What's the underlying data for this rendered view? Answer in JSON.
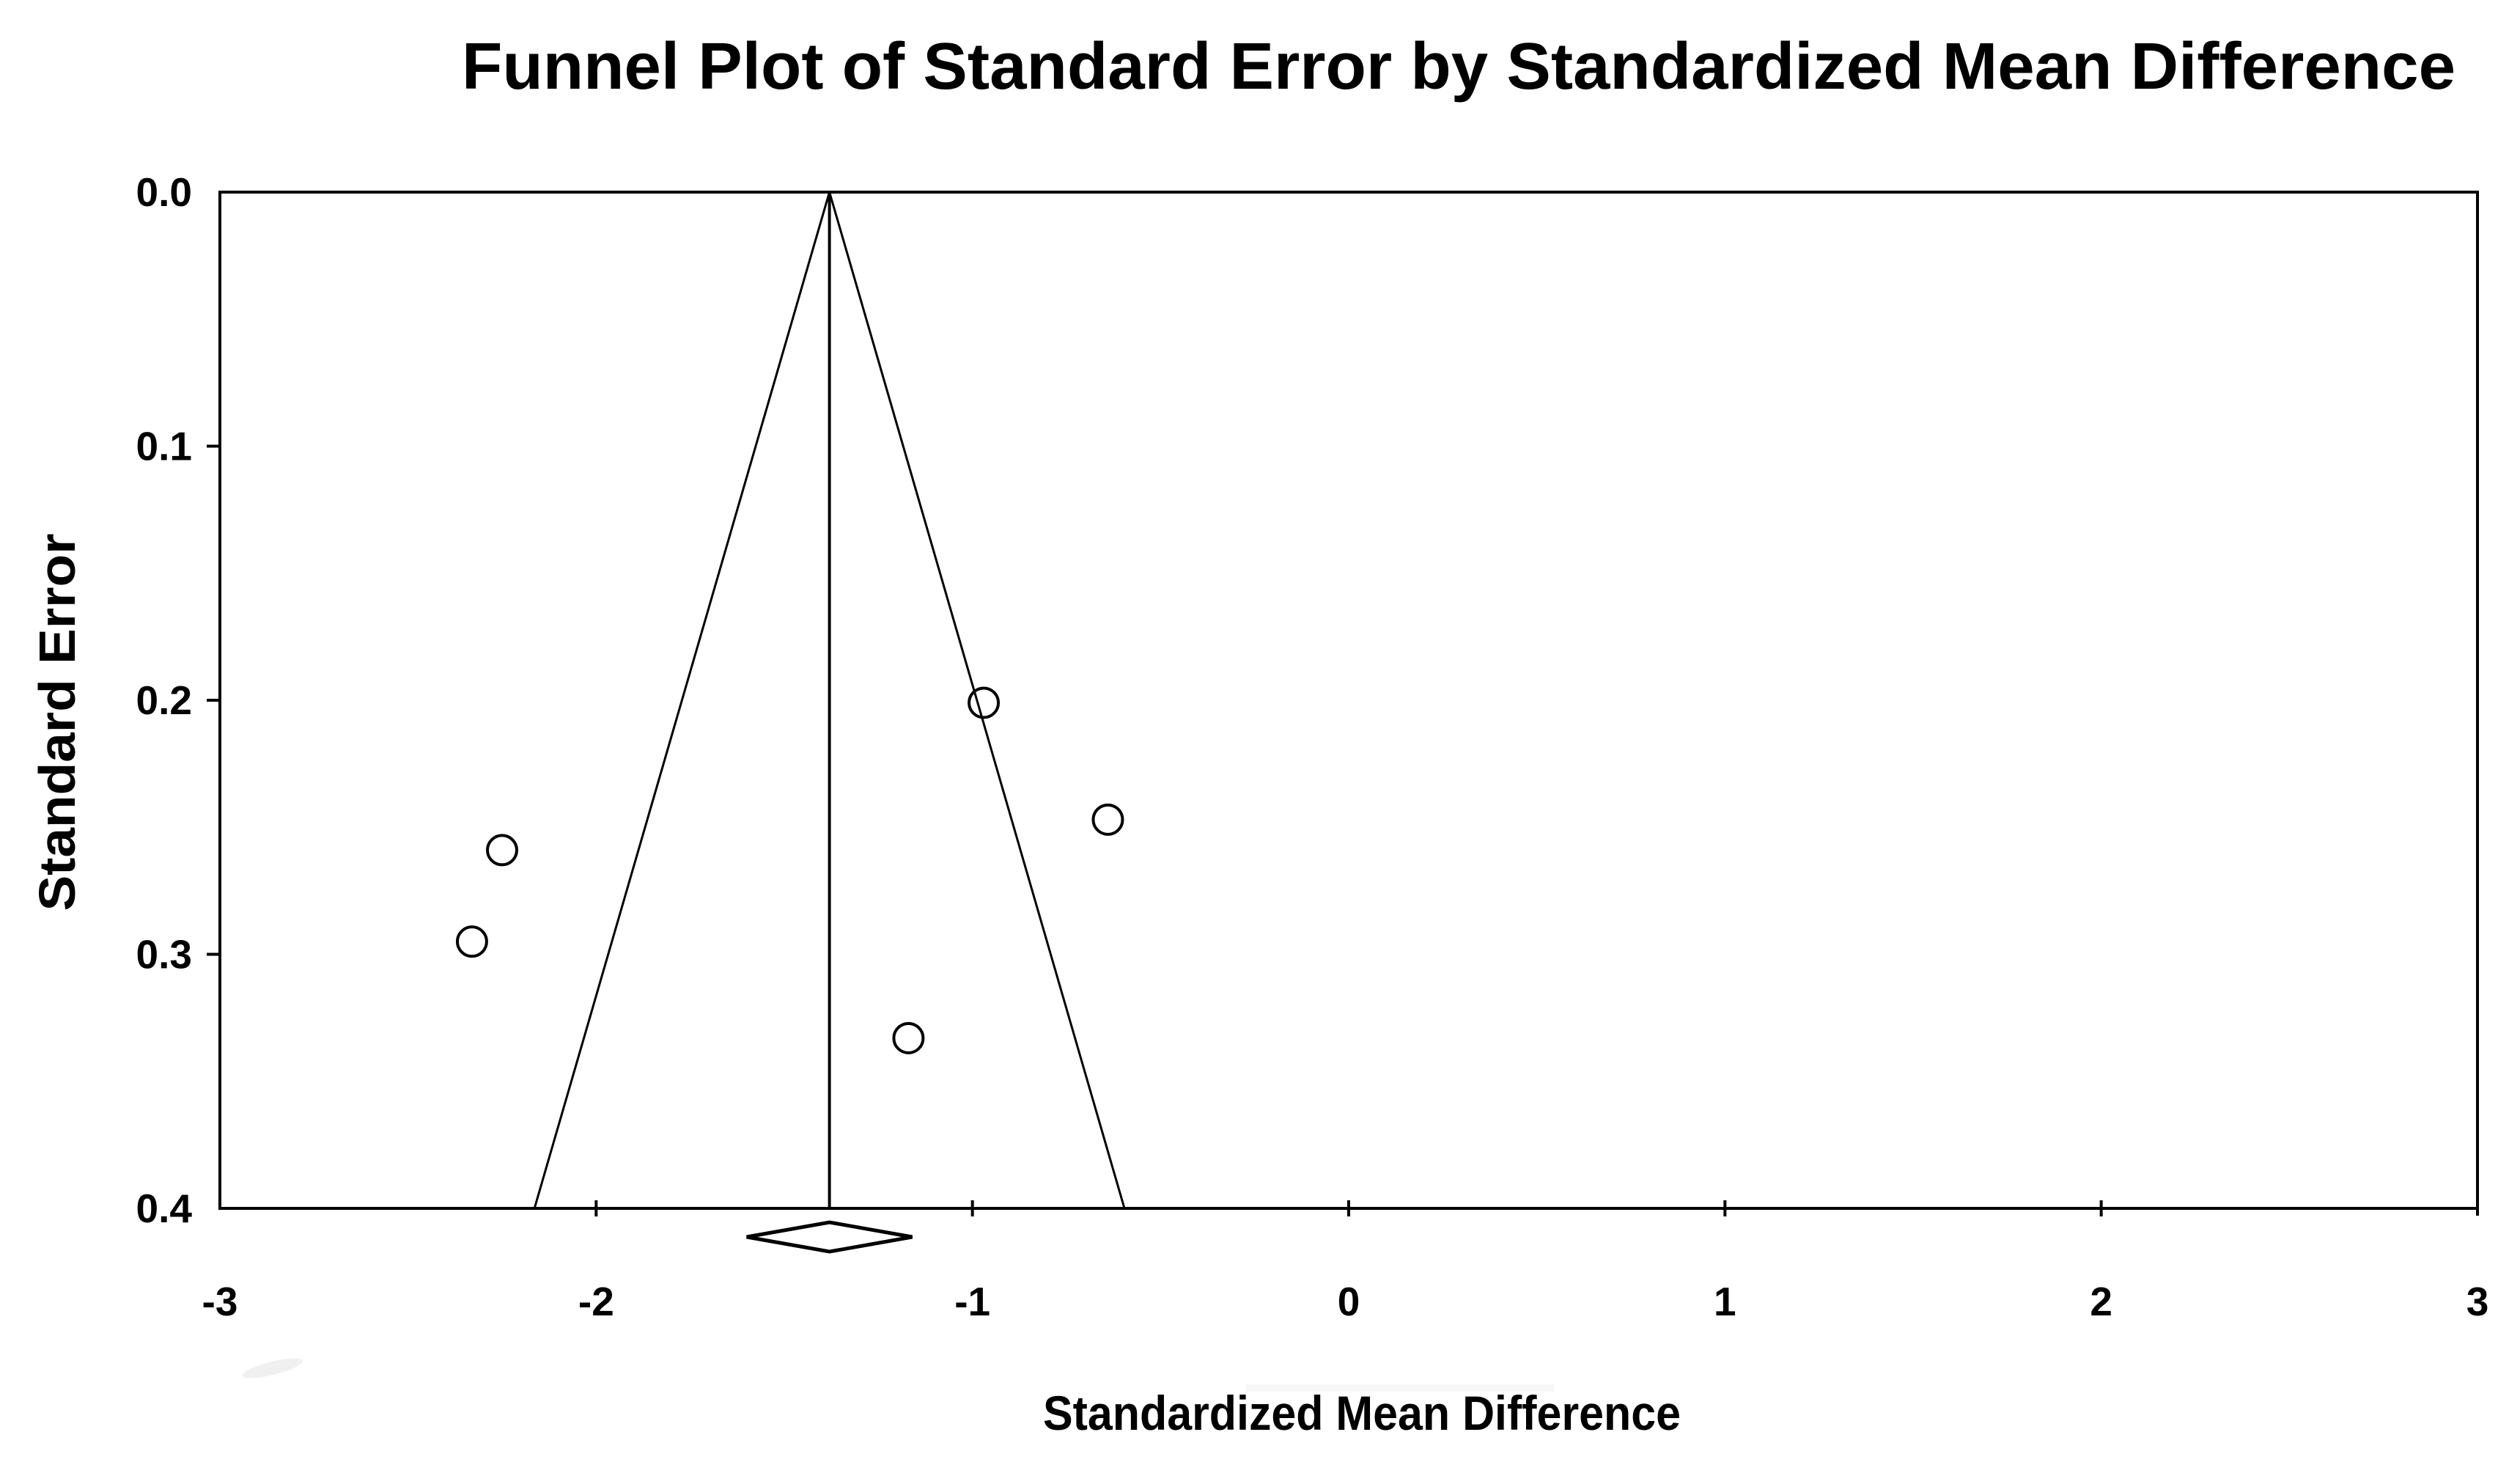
{
  "chart_data": {
    "type": "scatter",
    "subtype": "funnel-plot",
    "title": "Funnel Plot of Standard Error by Standardized Mean Difference",
    "xlabel": "Standardized Mean Difference",
    "ylabel": "Standard Error",
    "xlim": [
      -3,
      3
    ],
    "ylim": [
      0,
      0.4
    ],
    "y_inverted": true,
    "grid": false,
    "legend": null,
    "x_tick_values": [
      -3,
      -2,
      -1,
      0,
      1,
      2,
      3
    ],
    "x_tick_labels": [
      "-3",
      "-2",
      "-1",
      "0",
      "1",
      "2",
      "3"
    ],
    "y_tick_values": [
      0,
      0.1,
      0.2,
      0.3,
      0.4
    ],
    "y_tick_labels": [
      "0.0",
      "0.1",
      "0.2",
      "0.3",
      "0.4"
    ],
    "points": [
      {
        "x": -0.97,
        "se": 0.201
      },
      {
        "x": -0.64,
        "se": 0.247
      },
      {
        "x": -2.25,
        "se": 0.259
      },
      {
        "x": -2.33,
        "se": 0.295
      },
      {
        "x": -1.17,
        "se": 0.333
      }
    ],
    "funnel": {
      "apex_x": -1.38,
      "apex_se": 0.0,
      "ci_multiplier": 1.96,
      "se_bottom": 0.4,
      "center_line_x": -1.38
    },
    "summary_diamond": {
      "center_x": -1.38,
      "half_width": 0.22
    },
    "style": {
      "background": "#ffffff",
      "ink": "#000000",
      "point_fill": "none"
    }
  }
}
